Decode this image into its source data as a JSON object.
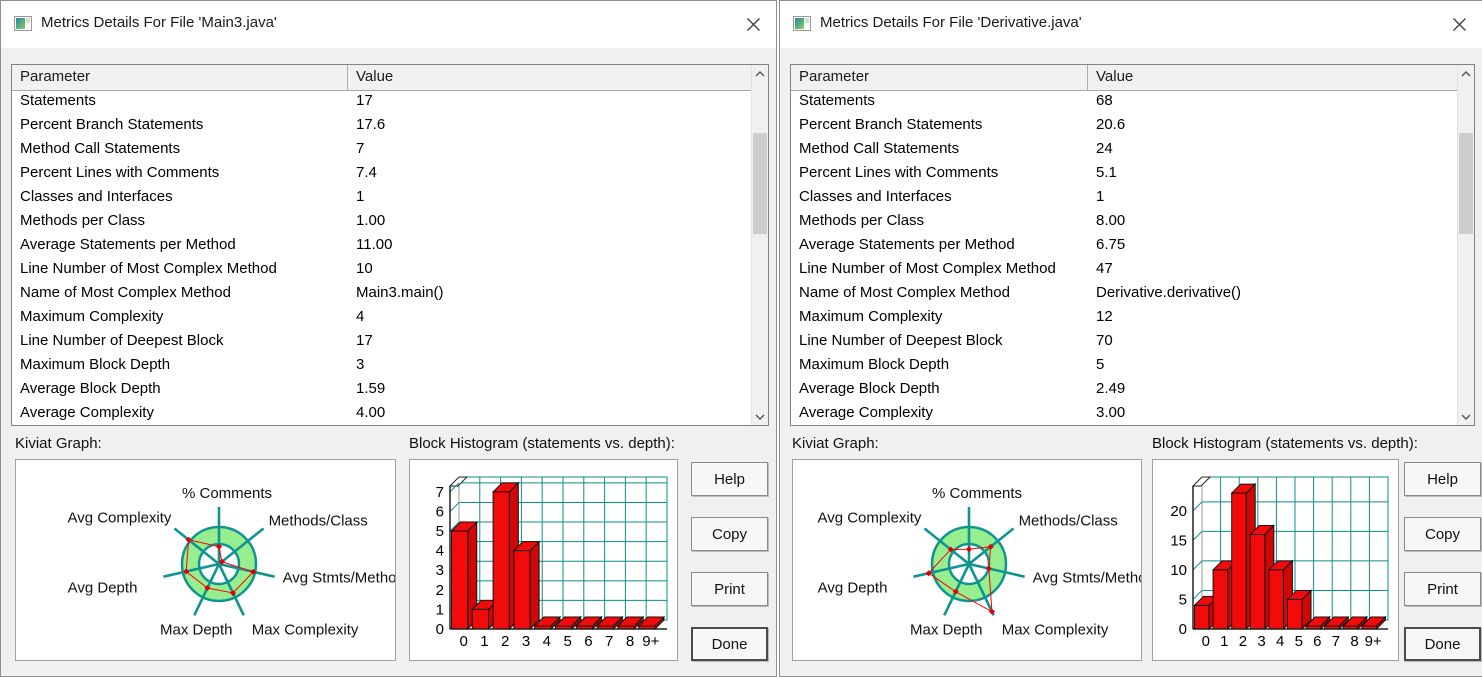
{
  "colors": {
    "teal": "#0f9492",
    "ring_green": "#97ee8f",
    "grid_teal": "#0e8c8c",
    "bar_red": "#f30b0b",
    "bar_red_dark": "#cf0707",
    "line_red": "#ff0000",
    "axis_black": "#1a1a1a"
  },
  "icons": {
    "app": "metrics-app-icon",
    "close": "close-icon",
    "scroll_up": "chevron-up-icon",
    "scroll_down": "chevron-down-icon"
  },
  "windows": [
    {
      "title": "Metrics Details For File 'Main3.java'",
      "table": {
        "columns": [
          "Parameter",
          "Value"
        ],
        "rows": [
          [
            "Statements",
            "17"
          ],
          [
            "Percent Branch Statements",
            "17.6"
          ],
          [
            "Method Call Statements",
            "7"
          ],
          [
            "Percent Lines with Comments",
            "7.4"
          ],
          [
            "Classes and Interfaces",
            "1"
          ],
          [
            "Methods per Class",
            "1.00"
          ],
          [
            "Average Statements per Method",
            "11.00"
          ],
          [
            "Line Number of Most Complex Method",
            "10"
          ],
          [
            "Name of Most Complex Method",
            "Main3.main()"
          ],
          [
            "Maximum Complexity",
            "4"
          ],
          [
            "Line Number of Deepest Block",
            "17"
          ],
          [
            "Maximum Block Depth",
            "3"
          ],
          [
            "Average Block Depth",
            "1.59"
          ],
          [
            "Average Complexity",
            "4.00"
          ]
        ]
      },
      "kiviat": {
        "label": "Kiviat Graph:",
        "type": "radar",
        "axes": [
          "% Comments",
          "Methods/Class",
          "Avg Stmts/Method",
          "Max Complexity",
          "Max Depth",
          "Avg Depth",
          "Avg Complexity"
        ],
        "values_fraction_of_outer_ring": [
          0.47,
          0.1,
          0.95,
          0.87,
          0.72,
          0.91,
          1.05
        ]
      },
      "histogram": {
        "label": "Block Histogram (statements vs. depth):",
        "type": "bar",
        "categories": [
          "0",
          "1",
          "2",
          "3",
          "4",
          "5",
          "6",
          "7",
          "8",
          "9+"
        ],
        "values": [
          5,
          1,
          7,
          4,
          0,
          0,
          0,
          0,
          0,
          0
        ],
        "yticks": [
          0,
          1,
          2,
          3,
          4,
          5,
          6,
          7
        ],
        "ymax": 7.3,
        "grid_step": 1
      },
      "buttons": [
        "Help",
        "Copy",
        "Print",
        "Done"
      ]
    },
    {
      "title": "Metrics Details For File 'Derivative.java'",
      "table": {
        "columns": [
          "Parameter",
          "Value"
        ],
        "rows": [
          [
            "Statements",
            "68"
          ],
          [
            "Percent Branch Statements",
            "20.6"
          ],
          [
            "Method Call Statements",
            "24"
          ],
          [
            "Percent Lines with Comments",
            "5.1"
          ],
          [
            "Classes and Interfaces",
            "1"
          ],
          [
            "Methods per Class",
            "8.00"
          ],
          [
            "Average Statements per Method",
            "6.75"
          ],
          [
            "Line Number of Most Complex Method",
            "47"
          ],
          [
            "Name of Most Complex Method",
            "Derivative.derivative()"
          ],
          [
            "Maximum Complexity",
            "12"
          ],
          [
            "Line Number of Deepest Block",
            "70"
          ],
          [
            "Maximum Block Depth",
            "5"
          ],
          [
            "Average Block Depth",
            "2.49"
          ],
          [
            "Average Complexity",
            "3.00"
          ]
        ]
      },
      "kiviat": {
        "label": "Kiviat Graph:",
        "type": "radar",
        "axes": [
          "% Comments",
          "Methods/Class",
          "Avg Stmts/Method",
          "Max Complexity",
          "Max Depth",
          "Avg Depth",
          "Avg Complexity"
        ],
        "values_fraction_of_outer_ring": [
          0.4,
          0.75,
          0.55,
          1.43,
          0.83,
          1.12,
          0.63
        ]
      },
      "histogram": {
        "label": "Block Histogram (statements vs. depth):",
        "type": "bar",
        "categories": [
          "0",
          "1",
          "2",
          "3",
          "4",
          "5",
          "6",
          "7",
          "8",
          "9+"
        ],
        "values": [
          4,
          10,
          23,
          16,
          10,
          5,
          0,
          0,
          0,
          0
        ],
        "yticks": [
          0,
          5,
          10,
          15,
          20
        ],
        "ymax": 24.2,
        "grid_step": 5
      },
      "buttons": [
        "Help",
        "Copy",
        "Print",
        "Done"
      ]
    }
  ]
}
